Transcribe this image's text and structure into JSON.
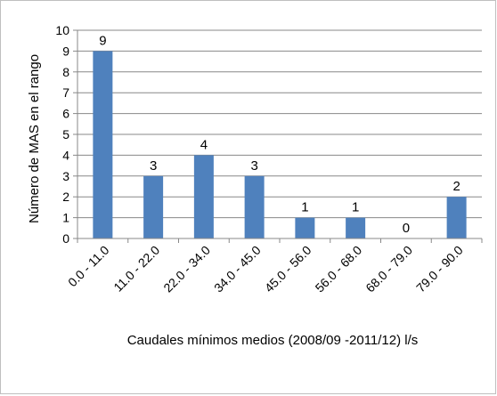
{
  "chart_data": {
    "type": "bar",
    "title": "",
    "xlabel": "Caudales mínimos medios (2008/09 -2011/12) l/s",
    "ylabel": "Número de MAS en el rango",
    "categories": [
      "0.0 - 11.0",
      "11.0 - 22.0",
      "22.0 - 34.0",
      "34.0 - 45.0",
      "45.0 - 56.0",
      "56.0 - 68.0",
      "68.0 - 79.0",
      "79.0 - 90.0"
    ],
    "values": [
      9,
      3,
      4,
      3,
      1,
      1,
      0,
      2
    ],
    "ylim": [
      0,
      10
    ],
    "yticks": [
      0,
      1,
      2,
      3,
      4,
      5,
      6,
      7,
      8,
      9,
      10
    ],
    "grid": true,
    "legend": "none",
    "data_labels": true,
    "bar_color": "#4f81bd",
    "grid_color": "#888888"
  }
}
